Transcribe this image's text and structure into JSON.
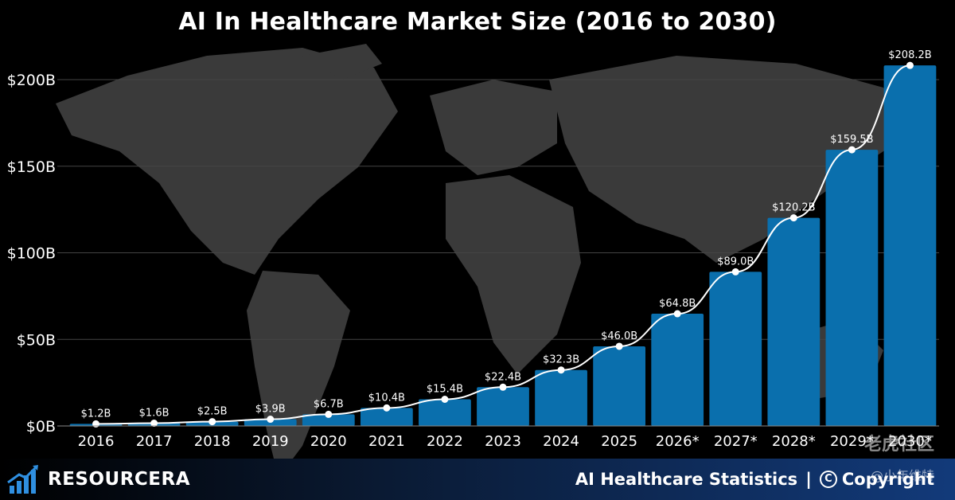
{
  "chart_data": {
    "type": "bar",
    "title": "AI In Healthcare Market Size (2016 to 2030)",
    "categories": [
      "2016",
      "2017",
      "2018",
      "2019",
      "2020",
      "2021",
      "2022",
      "2023",
      "2024",
      "2025",
      "2026*",
      "2027*",
      "2028*",
      "2029*",
      "2030*"
    ],
    "values": [
      1.2,
      1.6,
      2.5,
      3.9,
      6.7,
      10.4,
      15.4,
      22.4,
      32.3,
      46.0,
      64.8,
      89.0,
      120.2,
      159.5,
      208.2
    ],
    "data_labels": [
      "$1.2B",
      "$1.6B",
      "$2.5B",
      "$3.9B",
      "$6.7B",
      "$10.4B",
      "$15.4B",
      "$22.4B",
      "$32.3B",
      "$46.0B",
      "$64.8B",
      "$89.0B",
      "$120.2B",
      "$159.5B",
      "$208.2B"
    ],
    "ylim": [
      0,
      200
    ],
    "yticks": [
      0,
      50,
      100,
      150,
      200
    ],
    "ytick_labels": [
      "$0B",
      "$50B",
      "$100B",
      "$150B",
      "$200B"
    ],
    "xlabel": "",
    "ylabel": "",
    "grid": true,
    "overlay_line": true
  },
  "colors": {
    "bar": "#0a6fad",
    "line": "#ffffff",
    "grid": "#444444",
    "map": "#3a3a3a",
    "background": "#000000"
  },
  "footer": {
    "brand": "RESOURCERA",
    "brand_icon": "bar-chart-arrow-icon",
    "right_text": "AI Healthcare Statistics",
    "separator": "|",
    "copyright_icon": "copyright-icon",
    "copyright_text": "Copyright"
  },
  "watermark": {
    "text": "老虎社区",
    "sub": "@小年维特"
  }
}
